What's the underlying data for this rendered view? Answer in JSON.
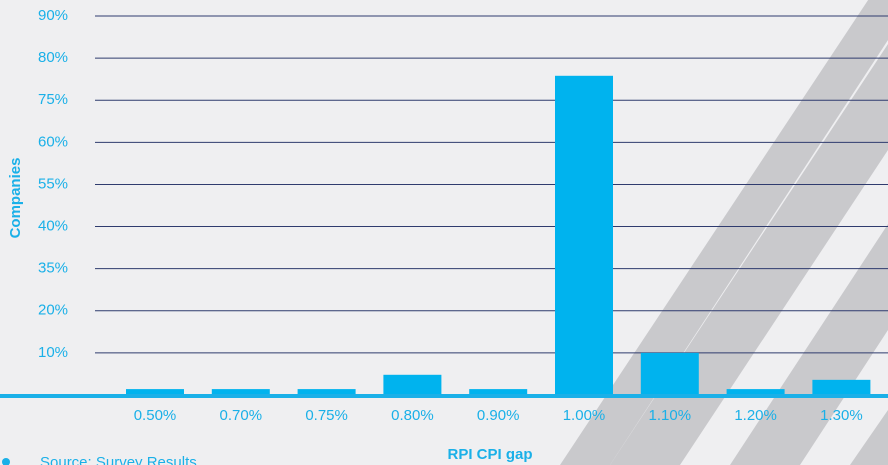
{
  "chart_data": {
    "type": "bar",
    "categories": [
      "0.50%",
      "0.70%",
      "0.75%",
      "0.80%",
      "0.90%",
      "1.00%",
      "1.10%",
      "1.20%",
      "1.30%"
    ],
    "values": [
      1.4,
      1.4,
      1.4,
      4.8,
      1.4,
      77.9,
      10,
      1.4,
      3.6
    ],
    "color": "#00b3ee",
    "ylim": [
      0,
      90
    ],
    "yticks": [
      {
        "value": 10,
        "label": "10%"
      },
      {
        "value": 20,
        "label": "20%"
      },
      {
        "value": 35,
        "label": "35%"
      },
      {
        "value": 40,
        "label": "40%"
      },
      {
        "value": 55,
        "label": "55%"
      },
      {
        "value": 60,
        "label": "60%"
      },
      {
        "value": 75,
        "label": "75%"
      },
      {
        "value": 80,
        "label": "80%"
      },
      {
        "value": 90,
        "label": "90%"
      }
    ],
    "x_label": "RPI CPI gap",
    "y_label": "Companies",
    "source": "Source: Survey Results",
    "grid": true
  }
}
